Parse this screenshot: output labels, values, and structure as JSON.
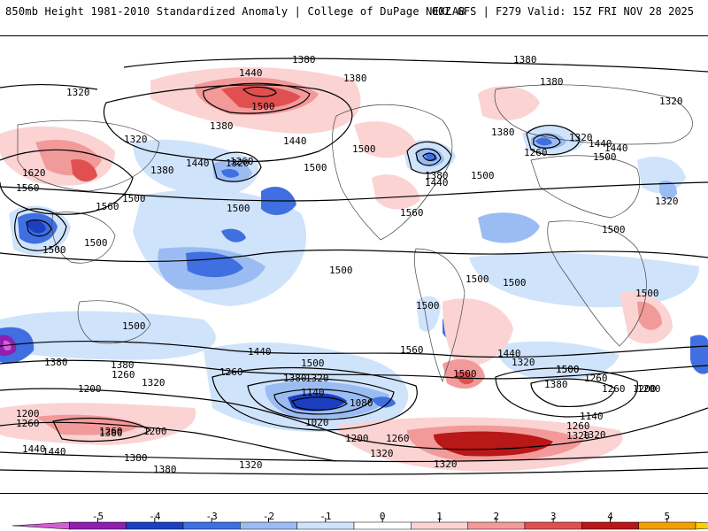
{
  "header": {
    "left_title": "850mb Height 1981-2010 Standardized Anomaly | College of DuPage NEXLAB",
    "right_title": "00Z GFS | F279 Valid: 15Z FRI NOV 28 2025"
  },
  "contour_labels": [
    "1380",
    "1380",
    "1320",
    "1440",
    "1380",
    "1380",
    "1500",
    "1320",
    "1320",
    "1260",
    "1380",
    "1440",
    "1320",
    "1500",
    "1440",
    "1500",
    "1380",
    "1380",
    "1440",
    "1500",
    "1320",
    "1260",
    "1440",
    "1500",
    "1380",
    "1500",
    "1620",
    "1560",
    "1500",
    "1560",
    "1500",
    "1560",
    "1500",
    "1500",
    "1500",
    "1500",
    "1500",
    "1500",
    "1500",
    "1500",
    "1500",
    "1560",
    "1440",
    "1500",
    "1380",
    "1320",
    "1380",
    "1260",
    "1320",
    "1200",
    "1140",
    "1080",
    "1020",
    "1200",
    "1260",
    "1260",
    "1440",
    "1380",
    "1320",
    "1500",
    "1380",
    "1260",
    "1200",
    "1140",
    "1260",
    "1320",
    "1320",
    "1440",
    "1320",
    "1200",
    "1260",
    "1200",
    "1260",
    "1380",
    "1320",
    "1440",
    "1380",
    "1380",
    "1320",
    "1320",
    "1440",
    "1260",
    "1200",
    "1500"
  ],
  "colorbar": {
    "ticks": [
      "-5",
      "-4",
      "-3",
      "-2",
      "-1",
      "0",
      "1",
      "2",
      "3",
      "4",
      "5"
    ],
    "colors": [
      "#d35fd6",
      "#8e1fb0",
      "#1c3fbf",
      "#3f6fe0",
      "#9bbcf2",
      "#cfe3fb",
      "#ffffff",
      "#fbd3d3",
      "#f29a9a",
      "#e05050",
      "#b81818",
      "#f0a000",
      "#ffd000"
    ]
  }
}
